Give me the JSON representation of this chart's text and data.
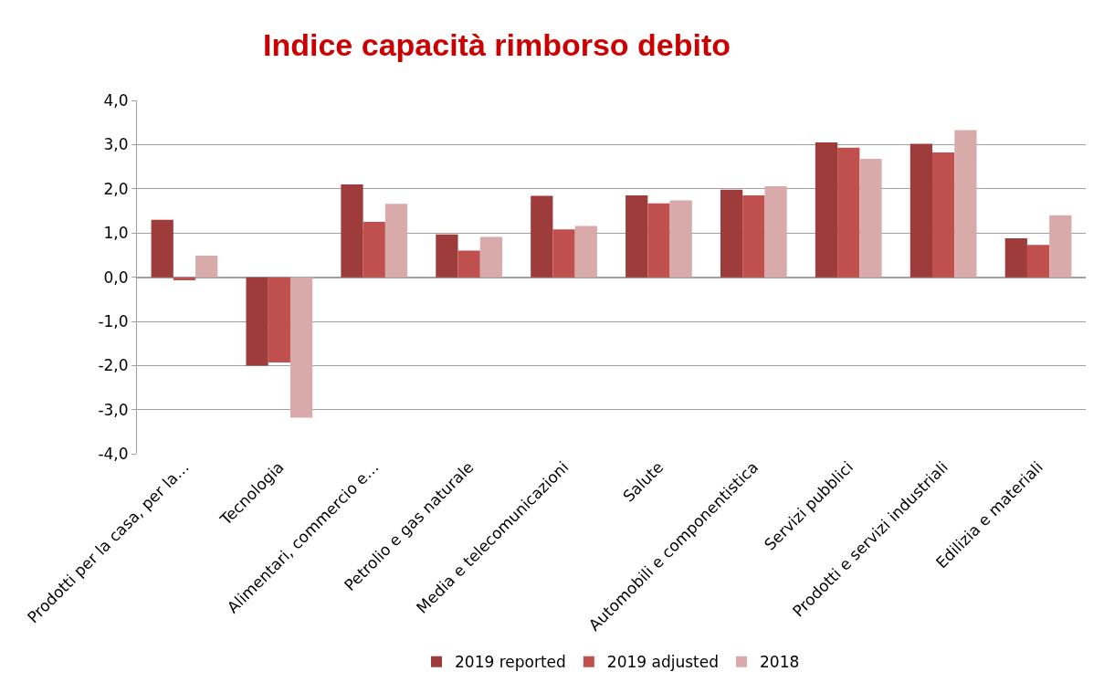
{
  "chart_data": {
    "type": "bar",
    "title": "Indice capacità rimborso debito",
    "categories": [
      "Prodotti per la casa, per la…",
      "Tecnologia",
      "Alimentari, commercio e…",
      "Petrolio e gas naturale",
      "Media e telecomunicazioni",
      "Salute",
      "Automobili e componentistica",
      "Servizi pubblici",
      "Prodotti e servizi industriali",
      "Edilizia e materiali"
    ],
    "series": [
      {
        "name": "2019 reported",
        "color": "#9e3b3b",
        "values": [
          1.3,
          -2.0,
          2.1,
          0.97,
          1.84,
          1.85,
          1.98,
          3.05,
          3.02,
          0.88
        ]
      },
      {
        "name": "2019 adjusted",
        "color": "#c0504d",
        "values": [
          -0.07,
          -1.93,
          1.25,
          0.6,
          1.08,
          1.67,
          1.85,
          2.93,
          2.82,
          0.73
        ]
      },
      {
        "name": "2018",
        "color": "#d9aaaa",
        "values": [
          0.49,
          -3.18,
          1.66,
          0.91,
          1.16,
          1.74,
          2.06,
          2.68,
          3.33,
          1.4
        ]
      }
    ],
    "ylim": [
      -4,
      4
    ],
    "yticks": [
      {
        "value": -4,
        "label": "-4,0"
      },
      {
        "value": -3,
        "label": "-3,0"
      },
      {
        "value": -2,
        "label": "-2,0"
      },
      {
        "value": -1,
        "label": "-1,0"
      },
      {
        "value": 0,
        "label": "0,0"
      },
      {
        "value": 1,
        "label": "1,0"
      },
      {
        "value": 2,
        "label": "2,0"
      },
      {
        "value": 3,
        "label": "3,0"
      },
      {
        "value": 4,
        "label": "4,0"
      }
    ],
    "grid": "y",
    "legend": "bottom"
  }
}
